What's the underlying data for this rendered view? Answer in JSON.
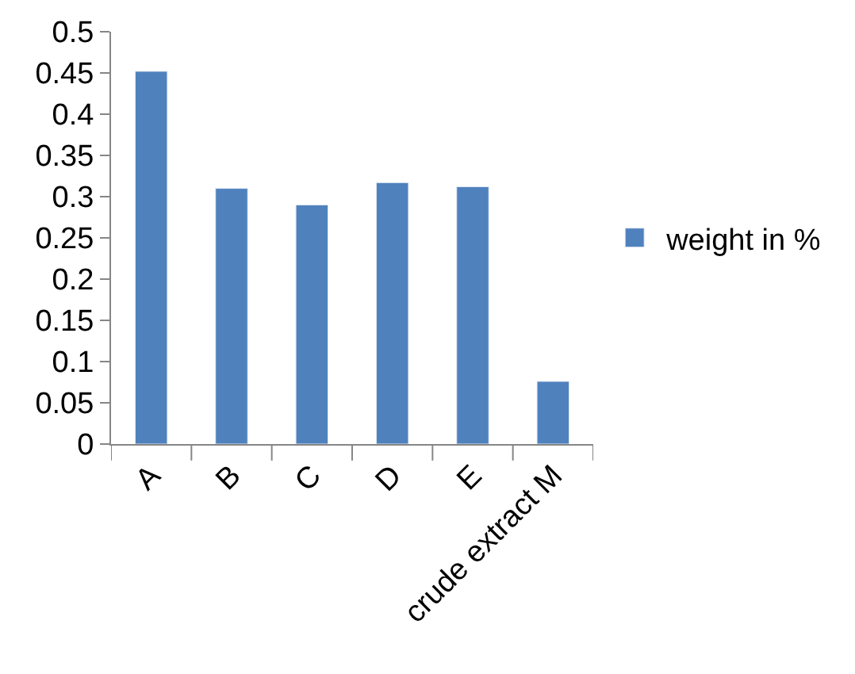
{
  "chart_data": {
    "type": "bar",
    "categories": [
      "A",
      "B",
      "C",
      "D",
      "E",
      "crude extract M"
    ],
    "series": [
      {
        "name": "weight in %",
        "color": "#4f81bd",
        "values": [
          0.452,
          0.31,
          0.29,
          0.317,
          0.312,
          0.076
        ]
      }
    ],
    "ylim": [
      0,
      0.5
    ],
    "yticks": [
      0,
      0.05,
      0.1,
      0.15,
      0.2,
      0.25,
      0.3,
      0.35,
      0.4,
      0.45,
      0.5
    ],
    "grid": false,
    "legend": "right"
  }
}
